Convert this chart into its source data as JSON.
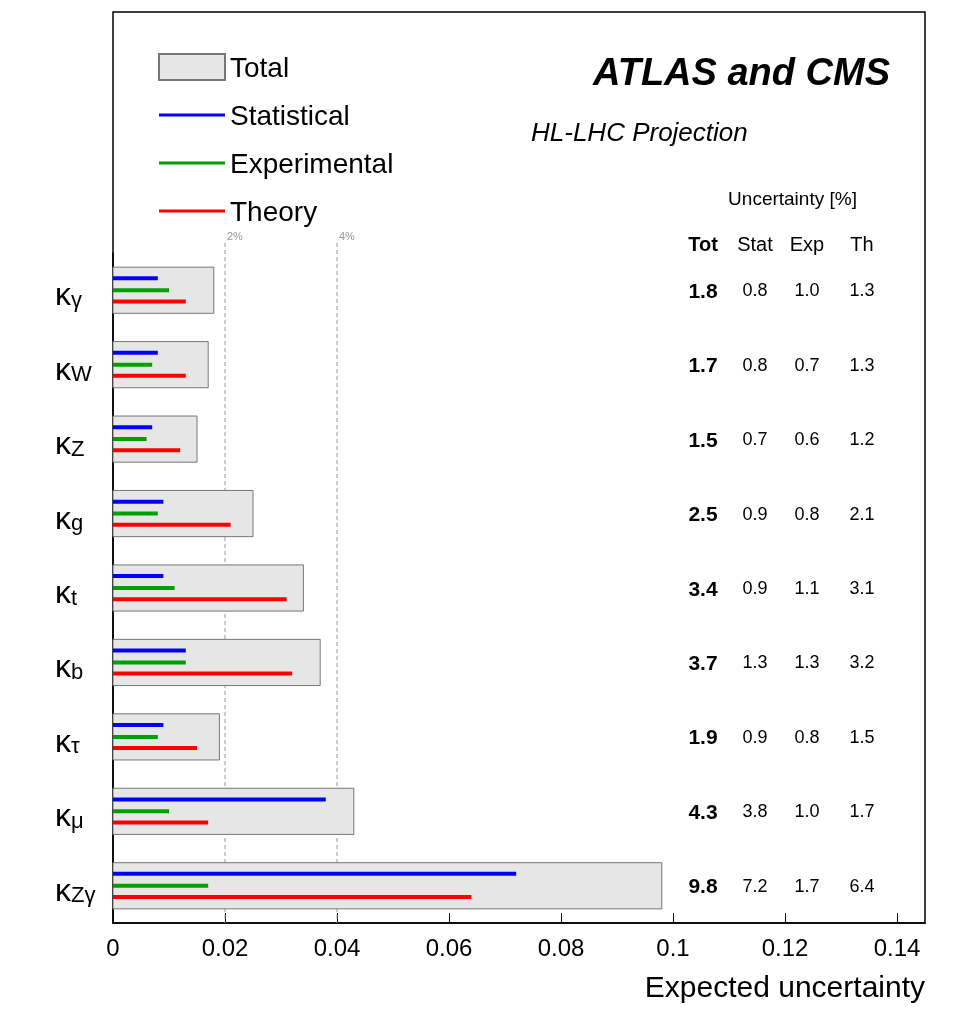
{
  "chart_data": {
    "type": "bar",
    "orientation": "horizontal",
    "title": "ATLAS and CMS",
    "subtitle": "HL-LHC Projection",
    "xlabel": "Expected uncertainty",
    "categories": [
      "κ$_{γ}$",
      "κ$_{W}$",
      "κ$_{Z}$",
      "κ$_{g}$",
      "κ$_{t}$",
      "κ$_{b}$",
      "κ$_{τ}$",
      "κ$_{μ}$",
      "κ$_{Zγ}$"
    ],
    "series": [
      {
        "name": "Total",
        "color": "#e6e6e6",
        "values": [
          0.018,
          0.017,
          0.015,
          0.025,
          0.034,
          0.037,
          0.019,
          0.043,
          0.098
        ]
      },
      {
        "name": "Statistical",
        "color": "#0000ff",
        "values": [
          0.008,
          0.008,
          0.007,
          0.009,
          0.009,
          0.013,
          0.009,
          0.038,
          0.072
        ]
      },
      {
        "name": "Experimental",
        "color": "#00a000",
        "values": [
          0.01,
          0.007,
          0.006,
          0.008,
          0.011,
          0.013,
          0.008,
          0.01,
          0.017
        ]
      },
      {
        "name": "Theory",
        "color": "#ff0000",
        "values": [
          0.013,
          0.013,
          0.012,
          0.021,
          0.031,
          0.032,
          0.015,
          0.017,
          0.064
        ]
      }
    ],
    "xlim": [
      0,
      0.145
    ],
    "xticks": [
      0,
      0.02,
      0.04,
      0.06,
      0.08,
      0.1,
      0.12,
      0.14
    ],
    "ref_lines": [
      {
        "axis": "x",
        "value": 0.02,
        "label": "2%",
        "color": "#999999",
        "line_style": "dashed"
      },
      {
        "axis": "x",
        "value": 0.04,
        "label": "4%",
        "color": "#999999",
        "line_style": "dashed"
      }
    ],
    "annotations": [
      "Uncertainty [%]",
      "Tot",
      "Stat",
      "Exp",
      "Th",
      "1.8",
      "0.8",
      "1.0",
      "1.3",
      "1.7",
      "0.8",
      "0.7",
      "1.3",
      "1.5",
      "0.7",
      "0.6",
      "1.2",
      "2.5",
      "0.9",
      "0.8",
      "2.1",
      "3.4",
      "0.9",
      "1.1",
      "3.1",
      "3.7",
      "1.3",
      "1.3",
      "3.2",
      "1.9",
      "0.9",
      "0.8",
      "1.5",
      "4.3",
      "3.8",
      "1.0",
      "1.7",
      "9.8",
      "7.2",
      "1.7",
      "6.4"
    ],
    "grid": false,
    "legend": "top left"
  }
}
